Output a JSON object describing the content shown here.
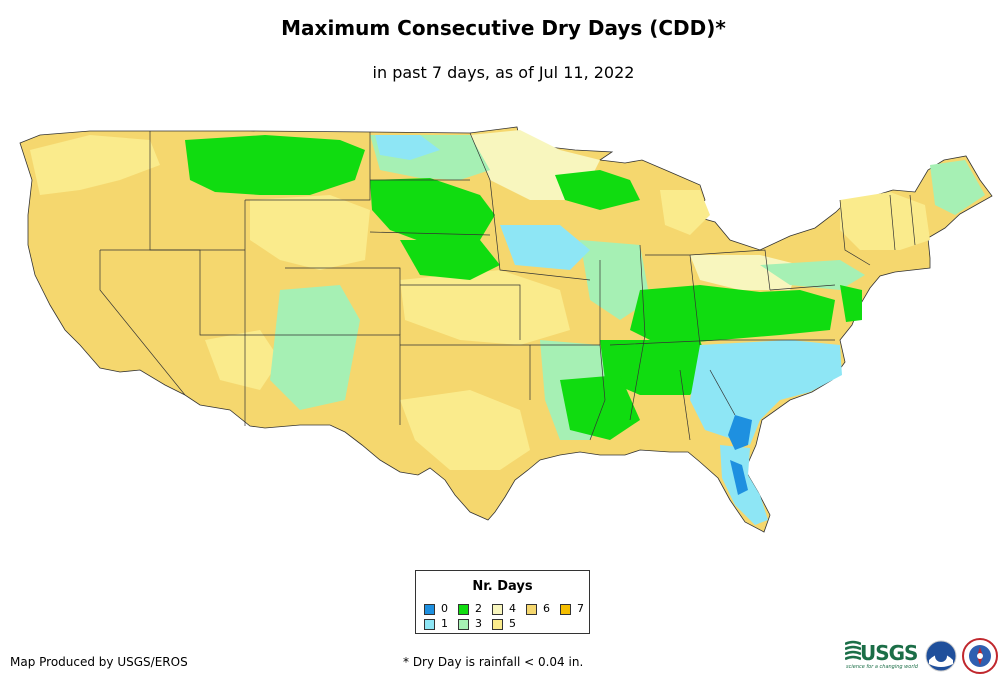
{
  "title": "Maximum Consecutive Dry Days (CDD)*",
  "subtitle": "in past 7 days, as of Jul 11, 2022",
  "legend": {
    "title": "Nr. Days",
    "items": [
      {
        "label": "0",
        "color": "#1e90e0"
      },
      {
        "label": "1",
        "color": "#8ee6f5"
      },
      {
        "label": "2",
        "color": "#10dc10"
      },
      {
        "label": "3",
        "color": "#a6f0b4"
      },
      {
        "label": "4",
        "color": "#f8f6be"
      },
      {
        "label": "5",
        "color": "#faeb8c"
      },
      {
        "label": "6",
        "color": "#f5d76e"
      },
      {
        "label": "7",
        "color": "#f5be00"
      }
    ]
  },
  "footer": {
    "credit": "Map Produced by USGS/EROS",
    "note": "* Dry Day is rainfall < 0.04 in."
  },
  "logos": {
    "usgs": "USGS",
    "usgs_tagline": "science for a changing world",
    "noaa": "noaa-logo",
    "nws": "nws-logo"
  }
}
